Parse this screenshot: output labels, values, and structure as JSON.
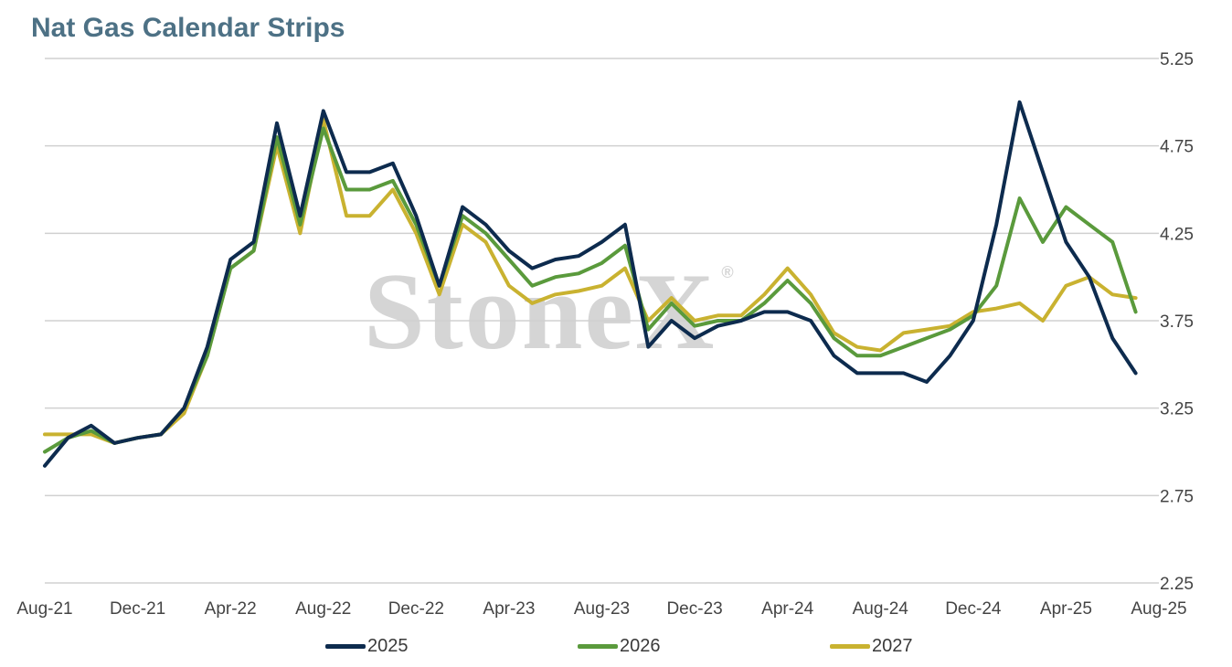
{
  "chart_data": {
    "type": "line",
    "title": "Nat Gas Calendar Strips",
    "xlabel": "",
    "ylabel": "",
    "ylim": [
      2.25,
      5.25
    ],
    "yticks": [
      "2.25",
      "2.75",
      "3.25",
      "3.75",
      "4.25",
      "4.75",
      "5.25"
    ],
    "x_tick_labels": [
      "Aug-21",
      "Dec-21",
      "Apr-22",
      "Aug-22",
      "Dec-22",
      "Apr-23",
      "Aug-23",
      "Dec-23",
      "Apr-24",
      "Aug-24",
      "Dec-24",
      "Apr-25",
      "Aug-25"
    ],
    "x_axis": "monthly, Aug-21 to Aug-25",
    "grid": "horizontal",
    "y_axis_side": "right",
    "legend_position": "bottom",
    "watermark": "StoneX",
    "series": [
      {
        "name": "2025",
        "color": "#0d2b4e",
        "x": [
          "Aug-21",
          "Sep-21",
          "Oct-21",
          "Nov-21",
          "Dec-21",
          "Jan-22",
          "Feb-22",
          "Mar-22",
          "Apr-22",
          "May-22",
          "Jun-22",
          "Jul-22",
          "Aug-22",
          "Sep-22",
          "Oct-22",
          "Nov-22",
          "Dec-22",
          "Jan-23",
          "Feb-23",
          "Mar-23",
          "Apr-23",
          "May-23",
          "Jun-23",
          "Jul-23",
          "Aug-23",
          "Sep-23",
          "Oct-23",
          "Nov-23",
          "Dec-23",
          "Jan-24",
          "Feb-24",
          "Mar-24",
          "Apr-24",
          "May-24",
          "Jun-24",
          "Jul-24",
          "Aug-24",
          "Sep-24",
          "Oct-24",
          "Nov-24",
          "Dec-24",
          "Jan-25",
          "Feb-25",
          "Mar-25",
          "Apr-25",
          "May-25",
          "Jun-25",
          "Jul-25"
        ],
        "values": [
          2.92,
          3.08,
          3.15,
          3.05,
          3.08,
          3.1,
          3.25,
          3.6,
          4.1,
          4.2,
          4.88,
          4.35,
          4.95,
          4.6,
          4.6,
          4.65,
          4.35,
          3.95,
          4.4,
          4.3,
          4.15,
          4.05,
          4.1,
          4.12,
          4.2,
          4.3,
          3.6,
          3.75,
          3.65,
          3.72,
          3.75,
          3.8,
          3.8,
          3.75,
          3.55,
          3.45,
          3.45,
          3.45,
          3.4,
          3.55,
          3.75,
          4.3,
          5.0,
          4.6,
          4.2,
          4.0,
          3.65,
          3.45
        ]
      },
      {
        "name": "2026",
        "color": "#5a9a3c",
        "x": [
          "Aug-21",
          "Sep-21",
          "Oct-21",
          "Nov-21",
          "Dec-21",
          "Jan-22",
          "Feb-22",
          "Mar-22",
          "Apr-22",
          "May-22",
          "Jun-22",
          "Jul-22",
          "Aug-22",
          "Sep-22",
          "Oct-22",
          "Nov-22",
          "Dec-22",
          "Jan-23",
          "Feb-23",
          "Mar-23",
          "Apr-23",
          "May-23",
          "Jun-23",
          "Jul-23",
          "Aug-23",
          "Sep-23",
          "Oct-23",
          "Nov-23",
          "Dec-23",
          "Jan-24",
          "Feb-24",
          "Mar-24",
          "Apr-24",
          "May-24",
          "Jun-24",
          "Jul-24",
          "Aug-24",
          "Sep-24",
          "Oct-24",
          "Nov-24",
          "Dec-24",
          "Jan-25",
          "Feb-25",
          "Mar-25",
          "Apr-25",
          "May-25",
          "Jun-25",
          "Jul-25"
        ],
        "values": [
          3.0,
          3.08,
          3.12,
          3.05,
          3.08,
          3.1,
          3.25,
          3.55,
          4.05,
          4.15,
          4.8,
          4.3,
          4.85,
          4.5,
          4.5,
          4.55,
          4.3,
          3.95,
          4.35,
          4.25,
          4.1,
          3.95,
          4.0,
          4.02,
          4.08,
          4.18,
          3.7,
          3.85,
          3.72,
          3.75,
          3.75,
          3.85,
          3.98,
          3.85,
          3.65,
          3.55,
          3.55,
          3.6,
          3.65,
          3.7,
          3.78,
          3.95,
          4.45,
          4.2,
          4.4,
          4.3,
          4.2,
          3.8
        ]
      },
      {
        "name": "2027",
        "color": "#c9b230",
        "x": [
          "Aug-21",
          "Sep-21",
          "Oct-21",
          "Nov-21",
          "Dec-21",
          "Jan-22",
          "Feb-22",
          "Mar-22",
          "Apr-22",
          "May-22",
          "Jun-22",
          "Jul-22",
          "Aug-22",
          "Sep-22",
          "Oct-22",
          "Nov-22",
          "Dec-22",
          "Jan-23",
          "Feb-23",
          "Mar-23",
          "Apr-23",
          "May-23",
          "Jun-23",
          "Jul-23",
          "Aug-23",
          "Sep-23",
          "Oct-23",
          "Nov-23",
          "Dec-23",
          "Jan-24",
          "Feb-24",
          "Mar-24",
          "Apr-24",
          "May-24",
          "Jun-24",
          "Jul-24",
          "Aug-24",
          "Sep-24",
          "Oct-24",
          "Nov-24",
          "Dec-24",
          "Jan-25",
          "Feb-25",
          "Mar-25",
          "Apr-25",
          "May-25",
          "Jun-25",
          "Jul-25"
        ],
        "values": [
          3.1,
          3.1,
          3.1,
          3.05,
          3.08,
          3.1,
          3.22,
          3.55,
          4.05,
          4.15,
          4.75,
          4.25,
          4.9,
          4.35,
          4.35,
          4.5,
          4.25,
          3.9,
          4.3,
          4.2,
          3.95,
          3.85,
          3.9,
          3.92,
          3.95,
          4.05,
          3.75,
          3.88,
          3.75,
          3.78,
          3.78,
          3.9,
          4.05,
          3.9,
          3.68,
          3.6,
          3.58,
          3.68,
          3.7,
          3.72,
          3.8,
          3.82,
          3.85,
          3.75,
          3.95,
          4.0,
          3.9,
          3.88
        ]
      }
    ]
  }
}
